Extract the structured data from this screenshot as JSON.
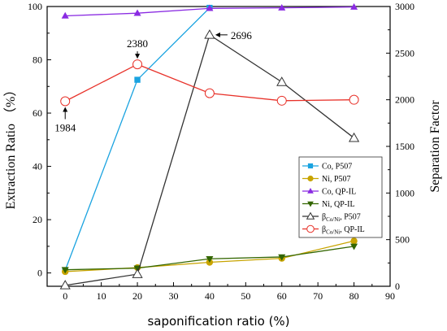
{
  "chart_data": {
    "type": "line",
    "xlabel": "saponification ratio (%)",
    "ylabel_left": "Extraction Ratio （%）",
    "ylabel_right": "Separation Factor",
    "xlim": [
      -5,
      90
    ],
    "ylim_left": [
      -5,
      100
    ],
    "ylim_right": [
      0,
      3000
    ],
    "x_ticks": [
      0,
      10,
      20,
      30,
      40,
      50,
      60,
      70,
      80,
      90
    ],
    "y_left_ticks": [
      0,
      20,
      40,
      60,
      80,
      100
    ],
    "y_right_ticks": [
      0,
      500,
      1000,
      1500,
      2000,
      2500,
      3000
    ],
    "legend_position": "right-center",
    "series": [
      {
        "key": "co_p507",
        "name": "Co, P507",
        "axis": "left",
        "color": "#1aa3e0",
        "marker": "square",
        "fill": true,
        "x": [
          0,
          20,
          40
        ],
        "y": [
          1.0,
          72.5,
          99.5
        ]
      },
      {
        "key": "ni_p507",
        "name": "Ni, P507",
        "axis": "left",
        "color": "#c8a400",
        "marker": "circle",
        "fill": true,
        "x": [
          0,
          20,
          40,
          60,
          80
        ],
        "y": [
          0.5,
          2.0,
          4.0,
          5.5,
          12.0
        ]
      },
      {
        "key": "co_qpil",
        "name": "Co, QP-IL",
        "axis": "left",
        "color": "#8a2be2",
        "marker": "triangle",
        "fill": true,
        "x": [
          0,
          20,
          40,
          60,
          80
        ],
        "y": [
          96.5,
          97.5,
          99.3,
          99.5,
          99.8
        ]
      },
      {
        "key": "ni_qpil",
        "name": "Ni,  QP-IL",
        "axis": "left",
        "color": "#336600",
        "marker": "triangle-down",
        "fill": true,
        "x": [
          0,
          20,
          40,
          60,
          80
        ],
        "y": [
          1.2,
          1.8,
          5.3,
          6.0,
          10.0
        ]
      },
      {
        "key": "beta_p507",
        "name_main": "β",
        "name_sub": "Co/Ni",
        "name_rest": ", P507",
        "axis": "right",
        "color": "#333333",
        "marker": "triangle",
        "fill": false,
        "x": [
          0,
          20,
          40,
          60,
          80
        ],
        "y": [
          10,
          130,
          2696,
          2190,
          1590
        ]
      },
      {
        "key": "beta_qpil",
        "name_main": "β",
        "name_sub": "Co/Ni",
        "name_rest": ", QP-IL",
        "axis": "right",
        "color": "#e8322a",
        "marker": "circle",
        "fill": false,
        "x": [
          0,
          20,
          40,
          60,
          80
        ],
        "y": [
          1984,
          2380,
          2070,
          1990,
          2000
        ]
      }
    ],
    "annotations": [
      {
        "text": "1984",
        "x": 0,
        "y": 1984,
        "axis": "right",
        "side": "below"
      },
      {
        "text": "2380",
        "x": 20,
        "y": 2380,
        "axis": "right",
        "side": "above"
      },
      {
        "text": "2696",
        "x": 40,
        "y": 2696,
        "axis": "right",
        "side": "right"
      }
    ]
  }
}
